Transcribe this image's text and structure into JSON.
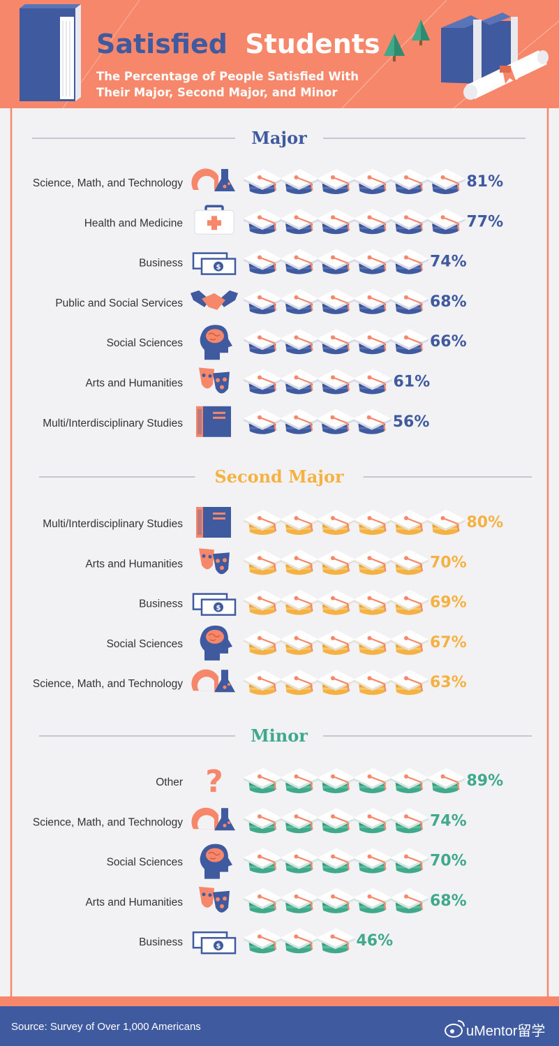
{
  "title": {
    "word1": "Satisfied",
    "word2": "Students",
    "subtitle_line1": "The Percentage of People Satisfied With",
    "subtitle_line2": "Their Major, Second Major, and Minor"
  },
  "footer": {
    "source": "Source: Survey of Over 1,000 Americans",
    "watermark": "uMentor留学"
  },
  "colors": {
    "header_bg": "#f6876a",
    "navy": "#3f5a9e",
    "orange": "#f6876a",
    "gold": "#f5b242",
    "green": "#3fa98a",
    "footer_bg": "#3f5a9e",
    "page_bg": "#f2f1f4"
  },
  "chart_data": {
    "type": "pictograph",
    "unit": "each graduation cap ≈ 14% of respondents",
    "sections": [
      {
        "title": "Major",
        "color": "#3f5a9e",
        "rows": [
          {
            "label": "Science, Math, and Technology",
            "value": 81,
            "value_label": "81%",
            "icon": "science-icon"
          },
          {
            "label": "Health and Medicine",
            "value": 77,
            "value_label": "77%",
            "icon": "medical-kit-icon"
          },
          {
            "label": "Business",
            "value": 74,
            "value_label": "74%",
            "icon": "money-icon"
          },
          {
            "label": "Public and Social Services",
            "value": 68,
            "value_label": "68%",
            "icon": "handshake-icon"
          },
          {
            "label": "Social Sciences",
            "value": 66,
            "value_label": "66%",
            "icon": "brain-head-icon"
          },
          {
            "label": "Arts and Humanities",
            "value": 61,
            "value_label": "61%",
            "icon": "theater-masks-icon"
          },
          {
            "label": "Multi/Interdisciplinary Studies",
            "value": 56,
            "value_label": "56%",
            "icon": "books-icon"
          }
        ]
      },
      {
        "title": "Second Major",
        "color": "#f5b242",
        "rows": [
          {
            "label": "Multi/Interdisciplinary Studies",
            "value": 80,
            "value_label": "80%",
            "icon": "books-icon"
          },
          {
            "label": "Arts and Humanities",
            "value": 70,
            "value_label": "70%",
            "icon": "theater-masks-icon"
          },
          {
            "label": "Business",
            "value": 69,
            "value_label": "69%",
            "icon": "money-icon"
          },
          {
            "label": "Social Sciences",
            "value": 67,
            "value_label": "67%",
            "icon": "brain-head-icon"
          },
          {
            "label": "Science, Math, and Technology",
            "value": 63,
            "value_label": "63%",
            "icon": "science-icon"
          }
        ]
      },
      {
        "title": "Minor",
        "color": "#3fa98a",
        "rows": [
          {
            "label": "Other",
            "value": 89,
            "value_label": "89%",
            "icon": "question-mark-icon"
          },
          {
            "label": "Science, Math, and Technology",
            "value": 74,
            "value_label": "74%",
            "icon": "science-icon"
          },
          {
            "label": "Social Sciences",
            "value": 70,
            "value_label": "70%",
            "icon": "brain-head-icon"
          },
          {
            "label": "Arts and Humanities",
            "value": 68,
            "value_label": "68%",
            "icon": "theater-masks-icon"
          },
          {
            "label": "Business",
            "value": 46,
            "value_label": "46%",
            "icon": "money-icon"
          }
        ]
      }
    ]
  }
}
